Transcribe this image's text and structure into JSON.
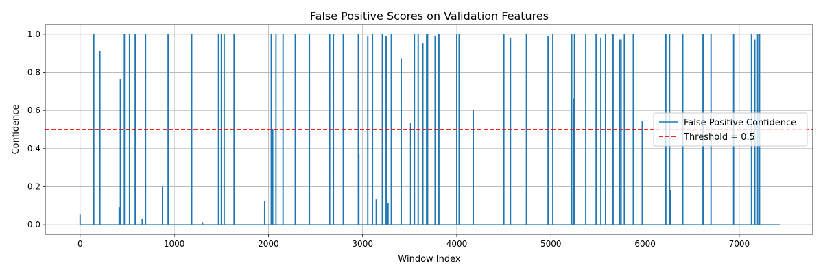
{
  "chart_data": {
    "type": "line",
    "title": "False Positive Scores on Validation Features",
    "xlabel": "Window Index",
    "ylabel": "Confidence",
    "xlim": [
      -370,
      7780
    ],
    "ylim": [
      -0.05,
      1.05
    ],
    "xticks": [
      0,
      1000,
      2000,
      3000,
      4000,
      5000,
      6000,
      7000
    ],
    "yticks": [
      0.0,
      0.2,
      0.4,
      0.6,
      0.8,
      1.0
    ],
    "grid": true,
    "legend_position": "right",
    "x_range": [
      0,
      7430
    ],
    "baseline": 0.0,
    "series": [
      {
        "name": "False Positive Confidence",
        "color": "#1f77b4",
        "spikes": [
          [
            0,
            0.05
          ],
          [
            145,
            1.0
          ],
          [
            210,
            0.91
          ],
          [
            415,
            0.09
          ],
          [
            428,
            0.76
          ],
          [
            470,
            1.0
          ],
          [
            525,
            1.0
          ],
          [
            585,
            1.0
          ],
          [
            660,
            0.03
          ],
          [
            695,
            1.0
          ],
          [
            875,
            0.2
          ],
          [
            935,
            1.0
          ],
          [
            1185,
            1.0
          ],
          [
            1300,
            0.01
          ],
          [
            1470,
            1.0
          ],
          [
            1500,
            1.0
          ],
          [
            1530,
            1.0
          ],
          [
            1635,
            1.0
          ],
          [
            1960,
            0.12
          ],
          [
            2030,
            1.0
          ],
          [
            2045,
            0.5
          ],
          [
            2080,
            1.0
          ],
          [
            2155,
            1.0
          ],
          [
            2285,
            1.0
          ],
          [
            2435,
            1.0
          ],
          [
            2650,
            1.0
          ],
          [
            2690,
            1.0
          ],
          [
            2795,
            1.0
          ],
          [
            2955,
            1.0
          ],
          [
            2960,
            0.37
          ],
          [
            3055,
            0.99
          ],
          [
            3105,
            1.0
          ],
          [
            3145,
            0.13
          ],
          [
            3210,
            1.0
          ],
          [
            3250,
            0.99
          ],
          [
            3270,
            0.11
          ],
          [
            3305,
            1.0
          ],
          [
            3410,
            0.87
          ],
          [
            3510,
            0.53
          ],
          [
            3550,
            1.0
          ],
          [
            3590,
            1.0
          ],
          [
            3640,
            0.95
          ],
          [
            3680,
            1.0
          ],
          [
            3690,
            1.0
          ],
          [
            3770,
            0.99
          ],
          [
            3810,
            1.0
          ],
          [
            4000,
            1.0
          ],
          [
            4025,
            1.0
          ],
          [
            4175,
            0.6
          ],
          [
            4500,
            1.0
          ],
          [
            4570,
            0.98
          ],
          [
            4740,
            1.0
          ],
          [
            4970,
            0.99
          ],
          [
            5020,
            1.0
          ],
          [
            5220,
            1.0
          ],
          [
            5240,
            0.66
          ],
          [
            5250,
            1.0
          ],
          [
            5370,
            1.0
          ],
          [
            5480,
            1.0
          ],
          [
            5530,
            0.98
          ],
          [
            5580,
            1.0
          ],
          [
            5660,
            1.0
          ],
          [
            5730,
            0.97
          ],
          [
            5745,
            0.97
          ],
          [
            5780,
            1.0
          ],
          [
            5875,
            1.0
          ],
          [
            5970,
            0.54
          ],
          [
            6220,
            1.0
          ],
          [
            6260,
            1.0
          ],
          [
            6270,
            0.18
          ],
          [
            6400,
            1.0
          ],
          [
            6615,
            1.0
          ],
          [
            6700,
            1.0
          ],
          [
            6940,
            1.0
          ],
          [
            7130,
            1.0
          ],
          [
            7165,
            0.97
          ],
          [
            7195,
            1.0
          ],
          [
            7215,
            1.0
          ]
        ]
      },
      {
        "name": "Threshold = 0.5",
        "color": "#ff0000",
        "style": "dashed",
        "value": 0.5
      }
    ]
  }
}
